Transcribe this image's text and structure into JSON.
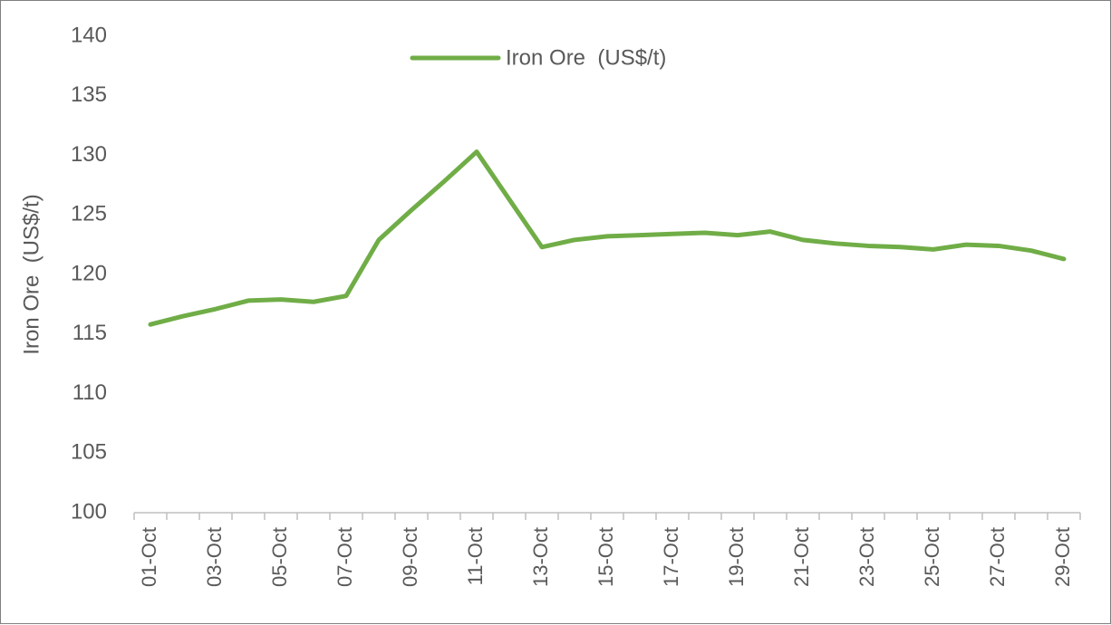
{
  "chart_data": {
    "type": "line",
    "y_label": "Iron Ore  (US$/t)",
    "categories": [
      "01-Oct",
      null,
      "03-Oct",
      null,
      "05-Oct",
      null,
      "07-Oct",
      null,
      "09-Oct",
      null,
      "11-Oct",
      null,
      "13-Oct",
      null,
      "15-Oct",
      null,
      "17-Oct",
      null,
      "19-Oct",
      null,
      "21-Oct",
      null,
      "23-Oct",
      null,
      "25-Oct",
      null,
      "27-Oct",
      null,
      "29-Oct"
    ],
    "series": [
      {
        "name": "Iron Ore  (US$/t)",
        "color": "#70ad47",
        "values": [
          115.8,
          116.5,
          117.1,
          117.8,
          117.9,
          117.7,
          118.2,
          122.9,
          125.4,
          127.8,
          130.3,
          126.3,
          122.3,
          122.9,
          123.2,
          123.3,
          123.4,
          123.5,
          123.3,
          123.6,
          122.9,
          122.6,
          122.4,
          122.3,
          122.1,
          122.5,
          122.4,
          122.0,
          121.3
        ]
      }
    ],
    "ylim": [
      100,
      140
    ],
    "yticks": [
      100,
      105,
      110,
      115,
      120,
      125,
      130,
      135,
      140
    ],
    "grid": false,
    "legend": "top"
  }
}
